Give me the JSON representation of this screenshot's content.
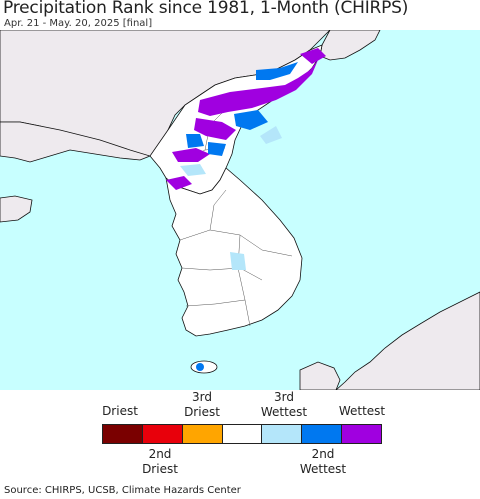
{
  "title": "Precipitation Rank since 1981, 1-Month (CHIRPS)",
  "subtitle": "Apr. 21 - May. 20, 2025 [final]",
  "legend": {
    "top_labels": [
      "Driest",
      "3rd\nDriest",
      "3rd\nWettest",
      "Wettest"
    ],
    "bottom_labels": [
      "2nd\nDriest",
      "2nd\nWettest"
    ],
    "categories": [
      {
        "name": "Driest",
        "color": "#7a0000"
      },
      {
        "name": "2nd Driest",
        "color": "#e8000b"
      },
      {
        "name": "3rd Driest",
        "color": "#ffa500"
      },
      {
        "name": "Normal",
        "color": "#ffffff"
      },
      {
        "name": "3rd Wettest",
        "color": "#b4e6fa"
      },
      {
        "name": "2nd Wettest",
        "color": "#0078f0"
      },
      {
        "name": "Wettest",
        "color": "#a000e0"
      }
    ]
  },
  "map": {
    "sea_color": "#c8ffff",
    "land_color": "#ffffff",
    "outside_land_color": "#eeeaee"
  },
  "source": "Source: CHIRPS, UCSB, Climate Hazards Center"
}
